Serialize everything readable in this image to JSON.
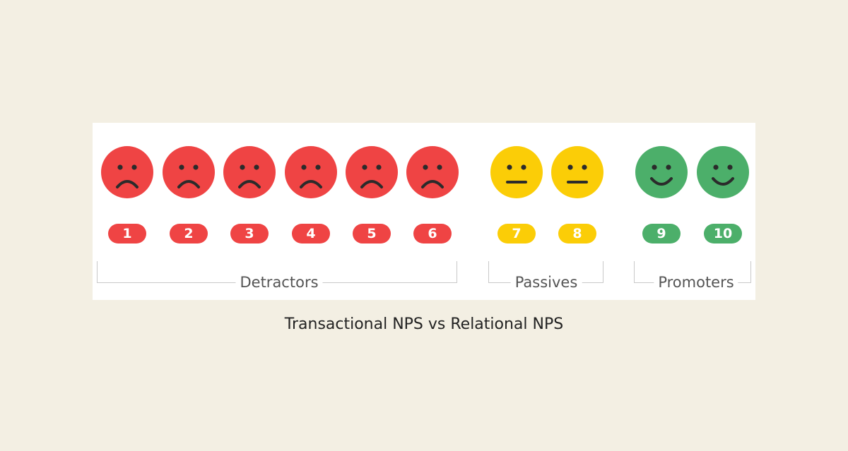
{
  "scale": [
    {
      "score": "1",
      "mood": "sad",
      "color": "#ef4444"
    },
    {
      "score": "2",
      "mood": "sad",
      "color": "#ef4444"
    },
    {
      "score": "3",
      "mood": "sad",
      "color": "#ef4444"
    },
    {
      "score": "4",
      "mood": "sad",
      "color": "#ef4444"
    },
    {
      "score": "5",
      "mood": "sad",
      "color": "#ef4444"
    },
    {
      "score": "6",
      "mood": "sad",
      "color": "#ef4444"
    },
    {
      "score": "7",
      "mood": "neutral",
      "color": "#fbcd07"
    },
    {
      "score": "8",
      "mood": "neutral",
      "color": "#fbcd07"
    },
    {
      "score": "9",
      "mood": "happy",
      "color": "#4caf6a"
    },
    {
      "score": "10",
      "mood": "happy",
      "color": "#4caf6a"
    }
  ],
  "groups": {
    "detractors": "Detractors",
    "passives": "Passives",
    "promoters": "Promoters"
  },
  "caption": "Transactional NPS vs Relational NPS"
}
